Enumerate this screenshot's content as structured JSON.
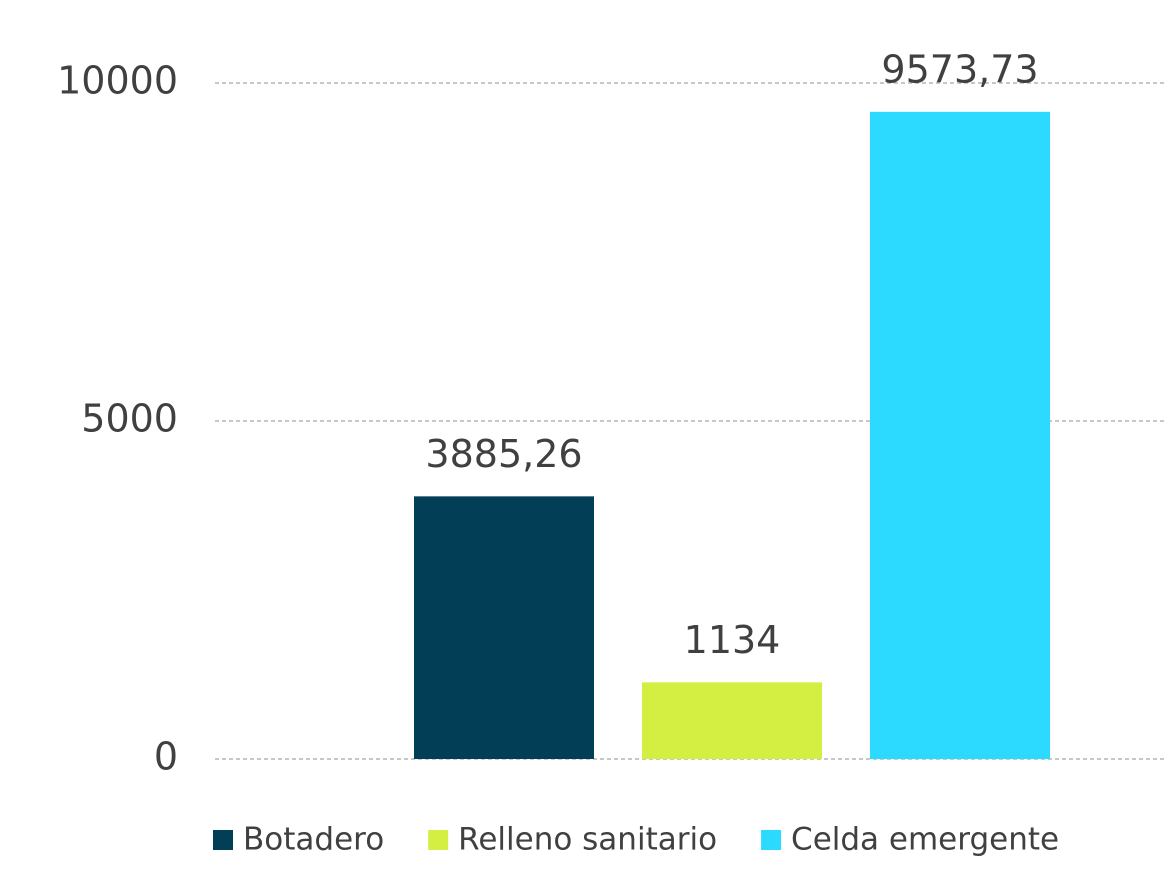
{
  "chart_data": {
    "type": "bar",
    "categories": [
      null
    ],
    "series": [
      {
        "name": "Botadero",
        "color": "#023e55",
        "values": [
          3885.26
        ],
        "value_labels": [
          "3885,26"
        ]
      },
      {
        "name": "Relleno sanitario",
        "color": "#d4ef42",
        "values": [
          1134
        ]
      },
      {
        "name": "Celda emergente",
        "color": "#2ddaff",
        "values": [
          9573.73
        ],
        "value_labels": [
          "9573,73"
        ]
      }
    ],
    "ylim": [
      0,
      10000
    ],
    "yticks": [
      0,
      5000,
      10000
    ],
    "grid": true,
    "legend": "bottom"
  }
}
